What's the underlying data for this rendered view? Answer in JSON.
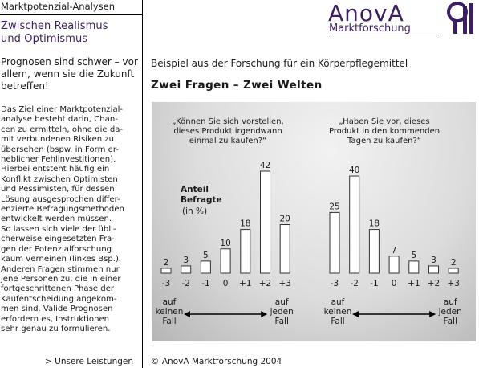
{
  "sidebar": {
    "header": "Marktpotenzial-Analysen",
    "title_line1": "Zwischen Realismus",
    "title_line2": "und Optimismus",
    "lead": "Prognosen sind schwer – vor allem, wenn sie die Zukunft betreffen!",
    "body": "Das Ziel einer Marktpotenzial-\nanalyse besteht darin, Chan-\ncen zu ermitteln, ohne die da-\nmit verbundenen Risiken zu\nübersehen (bspw. in Form er-\nheblicher Fehlinvestitionen).\nHierbei entsteht häufig ein\nKonflikt zwischen Optimisten\nund Pessimisten, für dessen\nLösung ausgesprochen differ-\nenzierte Befragungsmethoden\nentwickelt werden müssen.\nSo lassen sich viele der übli-\ncherweise eingesetzten Fra-\ngen der Potenzialforschung\nkaum verneinen (linkes Bsp.).\nAnderen Fragen stimmen nur\njene Personen zu, die in einer\nfortgeschrittenen Phase der\nKaufentscheidung angekom-\nmen sind. Valide Prognosen\nerfordern es, Instruktionen\nsehr genau zu formulieren.",
    "footer_link": "> Unsere Leistungen"
  },
  "logo": {
    "name": "AnovA",
    "subtitle": "Marktforschung",
    "brand_color": "#3d1d63"
  },
  "main": {
    "subtitle": "Beispiel aus der Forschung für ein Körperpflegemittel",
    "title": "Zwei Fragen – Zwei Welten"
  },
  "chart_data": [
    {
      "type": "bar",
      "question": [
        "„Können Sie sich vorstellen,",
        "dieses Produkt irgendwann",
        "einmal zu kaufen?“"
      ],
      "categories": [
        "-3",
        "-2",
        "-1",
        "0",
        "+1",
        "+2",
        "+3"
      ],
      "values": [
        2,
        3,
        5,
        10,
        18,
        42,
        20
      ],
      "ylabel": [
        "Anteil",
        "Befragte",
        "(in %)"
      ],
      "scale_left": [
        "auf",
        "keinen",
        "Fall"
      ],
      "scale_right": [
        "auf",
        "jeden",
        "Fall"
      ],
      "ylim": [
        0,
        45
      ],
      "grid": false
    },
    {
      "type": "bar",
      "question": [
        "„Haben Sie vor, dieses",
        "Produkt in den kommenden",
        "Tagen zu kaufen?“"
      ],
      "categories": [
        "-3",
        "-2",
        "-1",
        "0",
        "+1",
        "+2",
        "+3"
      ],
      "values": [
        25,
        40,
        18,
        7,
        5,
        3,
        2
      ],
      "scale_left": [
        "auf",
        "keinen",
        "Fall"
      ],
      "scale_right": [
        "auf",
        "jeden",
        "Fall"
      ],
      "ylim": [
        0,
        45
      ],
      "grid": false
    }
  ],
  "footer": {
    "copyright": "© AnovA Marktforschung 2004"
  }
}
